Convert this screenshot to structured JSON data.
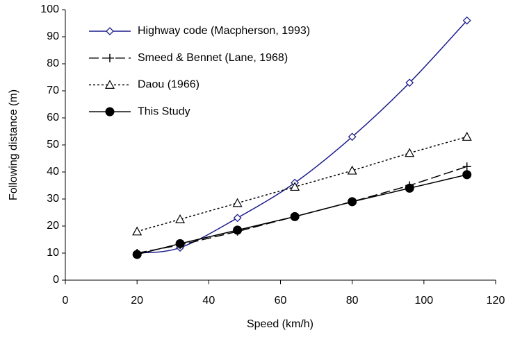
{
  "chart_data": {
    "type": "line",
    "x_label": "Speed (km/h)",
    "y_label": "Following distance (m)",
    "x": [
      20,
      32,
      48,
      64,
      80,
      96,
      112
    ],
    "series": [
      {
        "name": "Highway code (Macpherson, 1993)",
        "color": "#1c1c8c",
        "marker": "diamond",
        "dash": "solid",
        "smooth": true,
        "values": [
          10,
          12,
          23,
          36,
          53,
          73,
          96
        ]
      },
      {
        "name": "Smeed & Bennet (Lane, 1968)",
        "color": "#000000",
        "marker": "plus",
        "dash": "long-dash",
        "smooth": false,
        "values": [
          10,
          13,
          18,
          23.5,
          29,
          35,
          42
        ]
      },
      {
        "name": "Daou (1966)",
        "color": "#000000",
        "marker": "triangle",
        "dash": "dotted",
        "smooth": false,
        "values": [
          18,
          22.5,
          28.5,
          34.5,
          40.5,
          47,
          53
        ]
      },
      {
        "name": "This Study",
        "color": "#000000",
        "marker": "circle",
        "dash": "solid",
        "smooth": false,
        "values": [
          9.5,
          13.5,
          18.5,
          23.5,
          29,
          34,
          39
        ]
      }
    ],
    "xlim": [
      0,
      120
    ],
    "xticks": [
      0,
      20,
      40,
      60,
      80,
      100,
      120
    ],
    "ylim": [
      0,
      100
    ],
    "yticks": [
      0,
      10,
      20,
      30,
      40,
      50,
      60,
      70,
      80,
      90,
      100
    ],
    "grid": false,
    "legend": "upper-left"
  }
}
